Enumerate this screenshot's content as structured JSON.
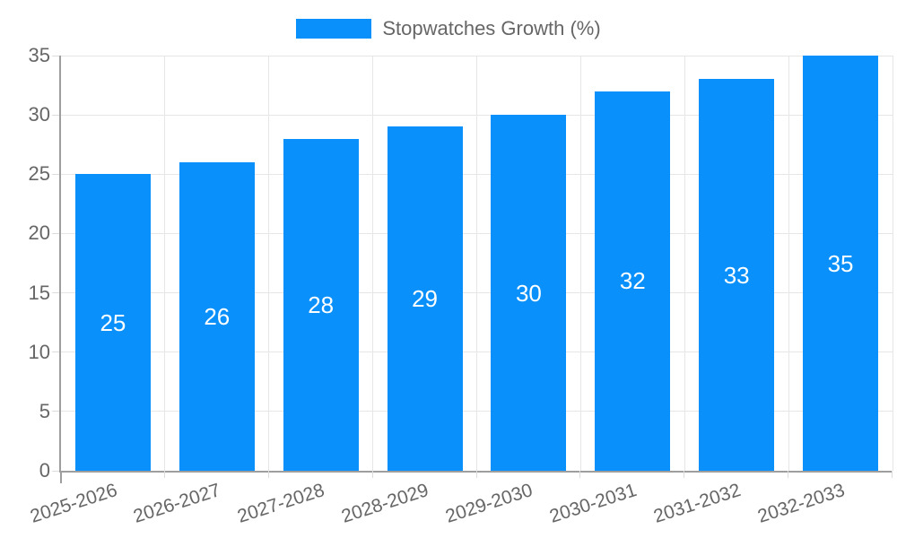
{
  "legend": {
    "label": "Stopwatches Growth (%)"
  },
  "chart_data": {
    "type": "bar",
    "title": "",
    "xlabel": "",
    "ylabel": "",
    "categories": [
      "2025-2026",
      "2026-2027",
      "2027-2028",
      "2028-2029",
      "2029-2030",
      "2030-2031",
      "2031-2032",
      "2032-2033"
    ],
    "series": [
      {
        "name": "Stopwatches Growth (%)",
        "values": [
          25,
          26,
          28,
          29,
          30,
          32,
          33,
          35
        ]
      }
    ],
    "value_labels_shown": true,
    "value_label_position": "inside-center",
    "ylim": [
      0,
      35
    ],
    "yticks": [
      0,
      5,
      10,
      15,
      20,
      25,
      30,
      35
    ],
    "grid": "on",
    "legend_position": "top-center",
    "colors": {
      "bar": "#0a90fa",
      "value_label": "#ffffff",
      "axis_text": "#666666",
      "grid_line": "#e6e6e6",
      "axis_line": "#9e9e9e"
    }
  }
}
